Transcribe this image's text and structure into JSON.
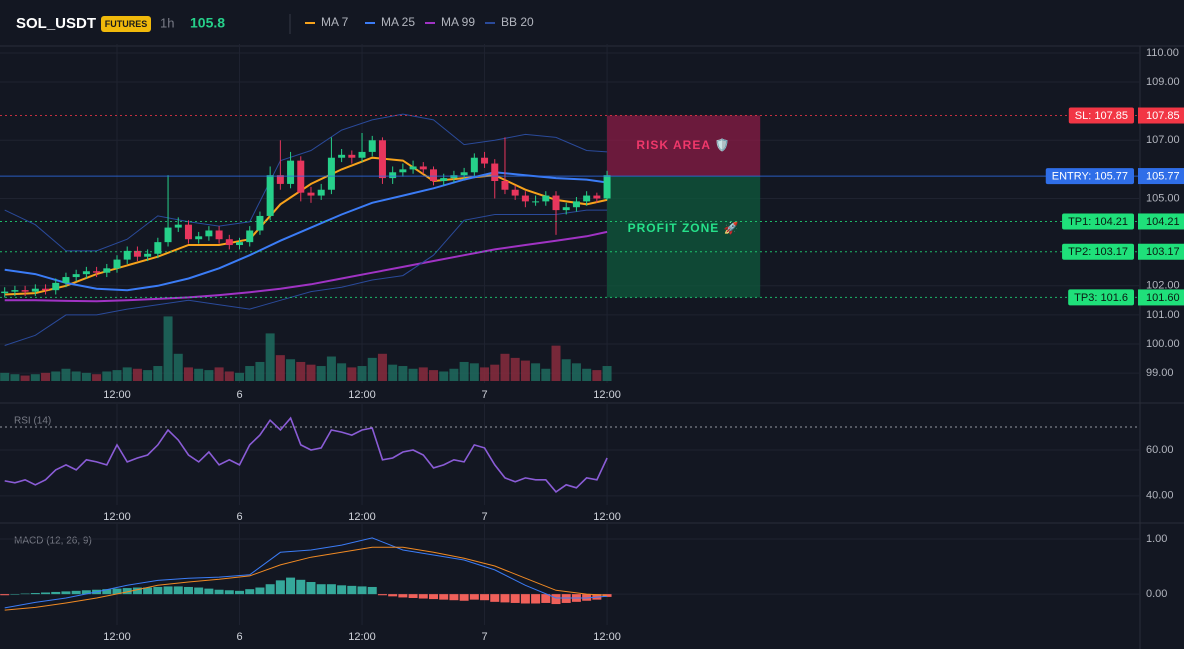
{
  "header": {
    "symbol": "SOL_USDT",
    "badge": "FUTURES",
    "interval": "1h",
    "price": 105.8
  },
  "chart_data": {
    "type": "candlestick",
    "x": [
      1,
      2,
      3,
      4,
      5,
      6,
      7,
      8,
      9,
      10,
      11,
      12,
      13,
      14,
      15,
      16,
      17,
      18,
      19,
      20,
      21,
      22,
      23,
      24,
      25,
      26,
      27,
      28,
      29,
      30,
      31,
      32,
      33,
      34,
      35,
      36,
      37,
      38,
      39,
      40,
      41,
      42,
      43,
      44,
      45,
      46,
      47,
      48,
      49,
      50,
      51,
      52,
      53,
      54,
      55,
      56,
      57,
      58,
      59,
      60
    ],
    "open": [
      101.75,
      101.8,
      101.85,
      101.8,
      101.9,
      101.85,
      102.1,
      102.3,
      102.4,
      102.5,
      102.45,
      102.6,
      102.9,
      103.2,
      103.0,
      103.1,
      103.5,
      104.0,
      104.1,
      103.6,
      103.7,
      103.9,
      103.6,
      103.4,
      103.5,
      103.9,
      104.4,
      105.8,
      105.5,
      106.3,
      105.2,
      105.1,
      105.3,
      106.4,
      106.5,
      106.4,
      106.6,
      107.0,
      105.7,
      105.9,
      106.0,
      106.1,
      106.0,
      105.6,
      105.7,
      105.8,
      105.9,
      106.4,
      106.2,
      105.6,
      105.3,
      105.1,
      104.9,
      104.9,
      105.1,
      104.6,
      104.7,
      104.9,
      105.1,
      105.0
    ],
    "high": [
      101.95,
      102.0,
      102.0,
      102.05,
      102.05,
      102.25,
      102.45,
      102.55,
      102.65,
      102.65,
      102.75,
      103.05,
      103.35,
      103.35,
      103.25,
      103.65,
      105.8,
      104.35,
      104.25,
      103.85,
      104.05,
      104.05,
      103.75,
      103.65,
      104.05,
      104.55,
      106.1,
      107.0,
      106.6,
      106.45,
      105.4,
      105.5,
      107.1,
      106.7,
      106.65,
      107.25,
      107.15,
      107.1,
      106.1,
      106.2,
      106.3,
      106.25,
      106.1,
      105.85,
      105.95,
      106.05,
      106.55,
      106.6,
      106.35,
      107.1,
      105.45,
      105.25,
      105.1,
      105.25,
      105.25,
      104.85,
      105.05,
      105.25,
      105.2,
      105.95
    ],
    "low": [
      101.6,
      101.65,
      101.65,
      101.65,
      101.7,
      101.7,
      101.95,
      102.15,
      102.25,
      102.3,
      102.3,
      102.45,
      102.75,
      102.85,
      102.85,
      102.95,
      103.35,
      103.85,
      103.45,
      103.45,
      103.55,
      103.45,
      103.25,
      103.25,
      103.35,
      103.75,
      104.25,
      105.3,
      105.35,
      104.9,
      104.85,
      104.95,
      105.15,
      106.25,
      106.2,
      106.25,
      106.45,
      105.5,
      105.5,
      105.75,
      105.85,
      105.85,
      105.45,
      105.45,
      105.55,
      105.65,
      105.75,
      106.05,
      105.0,
      105.15,
      104.95,
      104.7,
      104.75,
      104.75,
      103.75,
      104.45,
      104.55,
      104.75,
      104.85,
      104.95
    ],
    "close": [
      101.8,
      101.85,
      101.8,
      101.9,
      101.85,
      102.1,
      102.3,
      102.4,
      102.5,
      102.45,
      102.6,
      102.9,
      103.2,
      103.0,
      103.1,
      103.5,
      104.0,
      104.1,
      103.6,
      103.7,
      103.9,
      103.6,
      103.4,
      103.5,
      103.9,
      104.4,
      105.8,
      105.5,
      106.3,
      105.2,
      105.1,
      105.3,
      106.4,
      106.5,
      106.4,
      106.6,
      107.0,
      105.7,
      105.9,
      106.0,
      106.1,
      106.0,
      105.6,
      105.7,
      105.8,
      105.9,
      106.4,
      106.2,
      105.6,
      105.3,
      105.1,
      104.9,
      104.9,
      105.1,
      104.6,
      104.7,
      104.9,
      105.1,
      105.0,
      105.8
    ],
    "volume": [
      12,
      10,
      8,
      10,
      12,
      14,
      18,
      14,
      12,
      10,
      14,
      16,
      20,
      18,
      16,
      22,
      95,
      40,
      20,
      18,
      16,
      20,
      14,
      12,
      22,
      28,
      70,
      38,
      32,
      28,
      24,
      22,
      36,
      26,
      20,
      22,
      34,
      40,
      24,
      22,
      18,
      20,
      16,
      14,
      18,
      28,
      26,
      20,
      24,
      40,
      34,
      30,
      26,
      18,
      52,
      32,
      26,
      18,
      16,
      22
    ],
    "up_color": "#26d08a",
    "down_color": "#e8365d",
    "series": [
      {
        "name": "MA 7",
        "color": "#f7a21b",
        "x": [
          1,
          4,
          7,
          10,
          13,
          16,
          19,
          22,
          25,
          28,
          31,
          34,
          37,
          40,
          43,
          46,
          49,
          52,
          55,
          58,
          60
        ],
        "values": [
          101.7,
          101.75,
          102.0,
          102.4,
          102.7,
          103.0,
          103.4,
          103.4,
          103.6,
          104.8,
          105.5,
          106.0,
          106.4,
          106.3,
          105.6,
          105.7,
          105.8,
          105.3,
          104.95,
          104.8,
          104.95
        ]
      },
      {
        "name": "MA 25",
        "color": "#3b7cf6",
        "x": [
          1,
          4,
          7,
          10,
          13,
          16,
          19,
          22,
          25,
          28,
          31,
          34,
          37,
          40,
          43,
          46,
          49,
          52,
          55,
          58,
          60
        ],
        "values": [
          102.55,
          102.4,
          102.1,
          101.9,
          101.85,
          102.0,
          102.25,
          102.6,
          103.05,
          103.55,
          104.0,
          104.45,
          104.85,
          105.1,
          105.35,
          105.65,
          105.9,
          105.8,
          105.7,
          105.65,
          105.55
        ]
      },
      {
        "name": "MA 99",
        "color": "#a033c4",
        "x": [
          1,
          4,
          7,
          10,
          13,
          16,
          19,
          22,
          25,
          28,
          31,
          34,
          37,
          40,
          43,
          46,
          49,
          52,
          55,
          58,
          60
        ],
        "values": [
          101.5,
          101.5,
          101.48,
          101.47,
          101.5,
          101.55,
          101.6,
          101.68,
          101.78,
          101.9,
          102.05,
          102.25,
          102.45,
          102.65,
          102.85,
          103.05,
          103.25,
          103.4,
          103.55,
          103.7,
          103.85
        ]
      },
      {
        "name": "BB 20",
        "color": "#2a4a9a",
        "x": [
          1,
          4,
          7,
          10,
          13,
          16,
          19,
          22,
          25,
          28,
          31,
          34,
          37,
          40,
          43,
          46,
          49,
          52,
          55,
          58,
          60
        ],
        "values": [
          104.6,
          104.1,
          103.2,
          103.2,
          103.6,
          104.4,
          104.2,
          104.05,
          104.2,
          106.3,
          106.65,
          107.35,
          107.7,
          107.9,
          107.7,
          106.85,
          107.0,
          107.2,
          107.1,
          106.65,
          106.6
        ],
        "lower": [
          99.95,
          100.3,
          101.0,
          101.0,
          101.2,
          101.35,
          101.5,
          101.35,
          101.2,
          101.5,
          101.8,
          101.95,
          102.2,
          102.35,
          103.05,
          104.25,
          104.45,
          104.45,
          104.45,
          104.6,
          104.6
        ]
      }
    ],
    "xlim": [
      0.54,
      112.2
    ],
    "xticks": [
      {
        "value": 12,
        "label": "12:00"
      },
      {
        "value": 24,
        "label": "6"
      },
      {
        "value": 36,
        "label": "12:00"
      },
      {
        "value": 48,
        "label": "7"
      },
      {
        "value": 60,
        "label": "12:00"
      }
    ],
    "ylim": [
      98.66,
      110.17
    ],
    "yticks": [
      {
        "value": 99,
        "label": "99.00"
      },
      {
        "value": 100,
        "label": "100.00"
      },
      {
        "value": 101,
        "label": "101.00"
      },
      {
        "value": 102,
        "label": "102.00"
      },
      {
        "value": 105,
        "label": "105.00"
      },
      {
        "value": 107,
        "label": "107.00"
      },
      {
        "value": 109,
        "label": "109.00"
      },
      {
        "value": 110,
        "label": "110.00"
      }
    ],
    "levels": [
      {
        "name": "SL: 107.85",
        "value": 107.85,
        "label": "107.85",
        "color": "#f23645",
        "dash": true
      },
      {
        "name": "ENTRY: 105.77",
        "value": 105.77,
        "label": "105.77",
        "color": "#2f6ee8",
        "dash": false
      },
      {
        "name": "TP1: 104.21",
        "value": 104.21,
        "label": "104.21",
        "color": "#1fe07a",
        "dash": true
      },
      {
        "name": "TP2: 103.17",
        "value": 103.17,
        "label": "103.17",
        "color": "#1fe07a",
        "dash": true
      },
      {
        "name": "TP3: 101.6",
        "value": 101.6,
        "label": "101.60",
        "color": "#1fe07a",
        "dash": true
      }
    ],
    "zones": [
      {
        "label": "RISK AREA 🛡️",
        "from": 105.77,
        "to": 107.85,
        "x": [
          60,
          75
        ],
        "color": "#8a1c45",
        "text_color": "#f0386b"
      },
      {
        "label": "PROFIT ZONE 🚀",
        "from": 101.6,
        "to": 105.77,
        "x": [
          60,
          75
        ],
        "color": "#0f5a3c",
        "text_color": "#26e08a"
      }
    ],
    "rsi": {
      "title": "RSI (14)",
      "color": "#8a5cd6",
      "values": [
        46.5,
        45.7,
        47.0,
        44.8,
        47.0,
        51.3,
        53.5,
        51.3,
        55.7,
        54.8,
        53.5,
        62.2,
        54.8,
        56.5,
        57.8,
        62.2,
        68.7,
        64.3,
        57.8,
        54.8,
        59.1,
        53.5,
        55.7,
        53.5,
        62.2,
        66.5,
        73.0,
        68.7,
        73.9,
        62.2,
        60.0,
        60.9,
        68.7,
        67.8,
        66.5,
        68.7,
        69.6,
        55.7,
        56.5,
        59.1,
        60.0,
        57.8,
        52.2,
        53.5,
        55.7,
        54.8,
        62.2,
        60.9,
        53.5,
        47.8,
        46.1,
        47.8,
        47.0,
        47.0,
        41.7,
        44.8,
        43.5,
        47.8,
        47.0,
        56.5
      ],
      "ylim": [
        36,
        78.3
      ],
      "yticks": [
        {
          "value": 40,
          "label": "40.00"
        },
        {
          "value": 60,
          "label": "60.00"
        }
      ],
      "level": 70
    },
    "macd": {
      "title": "MACD (12, 26, 9)",
      "x": [
        1,
        4,
        7,
        10,
        13,
        16,
        19,
        22,
        25,
        28,
        31,
        34,
        37,
        40,
        43,
        46,
        49,
        52,
        55,
        58,
        60
      ],
      "macd": [
        -0.25,
        -0.15,
        -0.07,
        0.04,
        0.16,
        0.25,
        0.29,
        0.31,
        0.35,
        0.76,
        0.8,
        0.89,
        1.02,
        0.8,
        0.71,
        0.62,
        0.44,
        0.16,
        -0.07,
        -0.07,
        -0.04
      ],
      "signal": [
        -0.29,
        -0.24,
        -0.16,
        -0.07,
        0.04,
        0.16,
        0.22,
        0.27,
        0.33,
        0.53,
        0.67,
        0.76,
        0.85,
        0.85,
        0.76,
        0.65,
        0.51,
        0.29,
        0.07,
        0.0,
        -0.02
      ],
      "histogram": [
        -0.02,
        0,
        0.01,
        0.02,
        0.03,
        0.04,
        0.05,
        0.06,
        0.07,
        0.08,
        0.09,
        0.1,
        0.11,
        0.12,
        0.12,
        0.13,
        0.14,
        0.14,
        0.13,
        0.12,
        0.1,
        0.08,
        0.07,
        0.06,
        0.09,
        0.12,
        0.18,
        0.25,
        0.3,
        0.26,
        0.22,
        0.18,
        0.18,
        0.16,
        0.15,
        0.14,
        0.13,
        -0.02,
        -0.04,
        -0.06,
        -0.07,
        -0.08,
        -0.09,
        -0.1,
        -0.11,
        -0.12,
        -0.1,
        -0.11,
        -0.14,
        -0.15,
        -0.16,
        -0.17,
        -0.17,
        -0.16,
        -0.18,
        -0.16,
        -0.14,
        -0.12,
        -0.1,
        -0.05
      ],
      "macd_color": "#3b7cf6",
      "signal_color": "#f08a24",
      "pos_color": "#35a89a",
      "neg_color": "#f0605a",
      "ylim": [
        -0.56,
        1.2
      ],
      "yticks": [
        {
          "value": 0,
          "label": "0.00"
        },
        {
          "value": 1,
          "label": "1.00"
        }
      ]
    }
  }
}
